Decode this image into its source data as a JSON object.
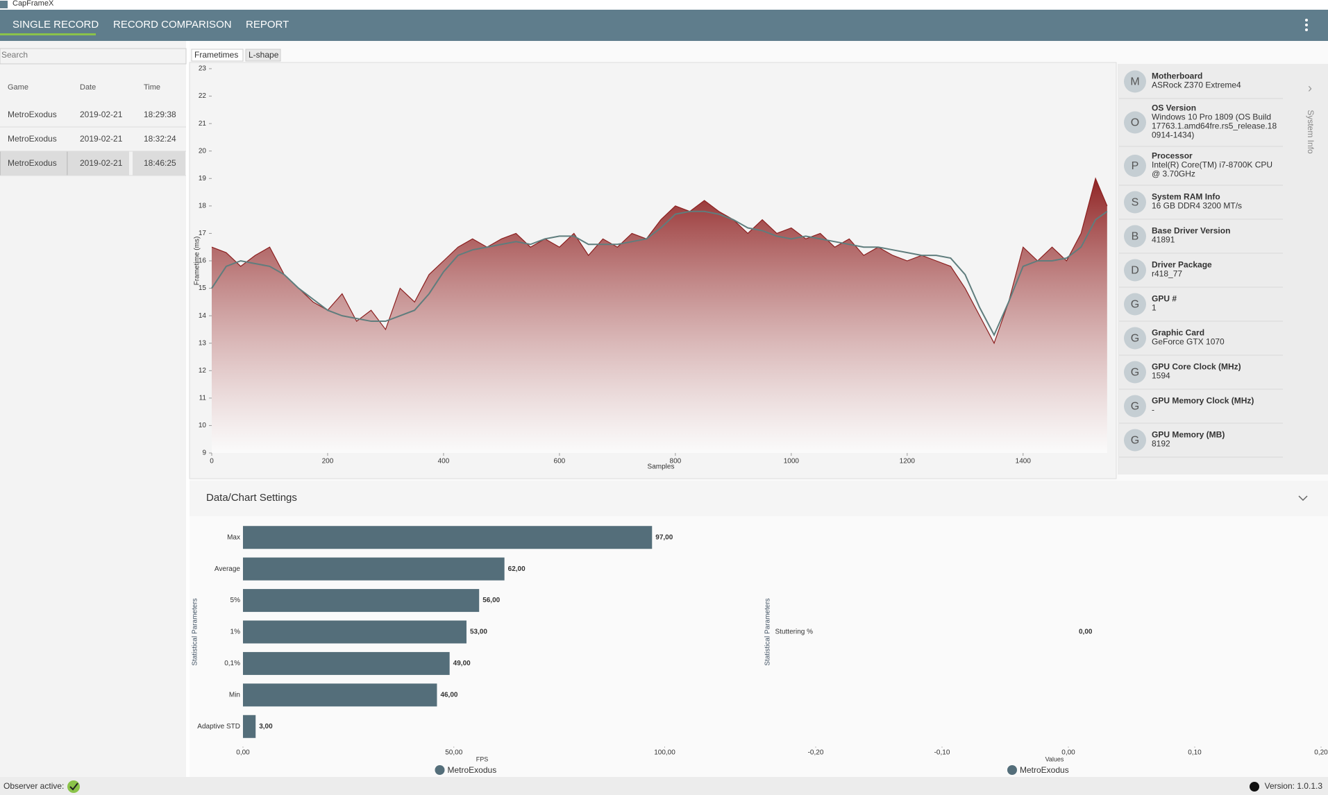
{
  "app_title": "CapFrameX",
  "nav": [
    "SINGLE RECORD",
    "RECORD COMPARISON",
    "REPORT"
  ],
  "sidebar": {
    "search": "Search",
    "headers": [
      "Game",
      "Date",
      "Time"
    ],
    "rows": [
      [
        "MetroExodus",
        "2019-02-21",
        "18:29:38"
      ],
      [
        "MetroExodus",
        "2019-02-21",
        "18:32:24"
      ],
      [
        "MetroExodus",
        "2019-02-21",
        "18:46:25"
      ]
    ]
  },
  "tabs": [
    "Frametimes",
    "L-shape"
  ],
  "system_info": {
    "title": "System Info",
    "items": [
      {
        "initial": "M",
        "label": "Motherboard",
        "value": [
          "ASRock Z370 Extreme4"
        ]
      },
      {
        "initial": "O",
        "label": "OS Version",
        "value": [
          "Windows 10 Pro 1809 (OS Build",
          "17763.1.amd64fre.rs5_release.18",
          "0914-1434)"
        ]
      },
      {
        "initial": "P",
        "label": "Processor",
        "value": [
          "Intel(R) Core(TM) i7-8700K CPU",
          "@ 3.70GHz"
        ]
      },
      {
        "initial": "S",
        "label": "System RAM Info",
        "value": [
          "16 GB DDR4 3200 MT/s"
        ]
      },
      {
        "initial": "B",
        "label": "Base Driver Version",
        "value": [
          "41891"
        ]
      },
      {
        "initial": "D",
        "label": "Driver Package",
        "value": [
          "r418_77"
        ]
      },
      {
        "initial": "G",
        "label": "GPU #",
        "value": [
          "1"
        ]
      },
      {
        "initial": "G",
        "label": "Graphic Card",
        "value": [
          "GeForce GTX 1070"
        ]
      },
      {
        "initial": "G",
        "label": "GPU Core Clock (MHz)",
        "value": [
          "1594"
        ]
      },
      {
        "initial": "G",
        "label": "GPU Memory Clock (MHz)",
        "value": [
          "-"
        ]
      },
      {
        "initial": "G",
        "label": "GPU Memory (MB)",
        "value": [
          "8192"
        ]
      }
    ]
  },
  "settings_title": "Data/Chart Settings",
  "status": {
    "observer": "Observer active:",
    "version": "Version: 1.0.1.3"
  },
  "chart_data": [
    {
      "type": "line",
      "x_label": "Samples",
      "y_label": "Frametime (ms)",
      "x": [
        0,
        25,
        50,
        75,
        100,
        125,
        150,
        175,
        200,
        225,
        250,
        275,
        300,
        325,
        350,
        375,
        400,
        425,
        450,
        475,
        500,
        525,
        550,
        575,
        600,
        625,
        650,
        675,
        700,
        725,
        750,
        775,
        800,
        825,
        850,
        875,
        900,
        925,
        950,
        975,
        1000,
        1025,
        1050,
        1075,
        1100,
        1125,
        1150,
        1175,
        1200,
        1225,
        1250,
        1275,
        1300,
        1325,
        1350,
        1375,
        1400,
        1425,
        1450,
        1475,
        1500,
        1525,
        1545
      ],
      "series": [
        {
          "color": "#8b1f1f",
          "values": [
            16.5,
            16.3,
            15.8,
            16.2,
            16.5,
            15.5,
            15,
            14.5,
            14.2,
            14.8,
            13.8,
            14.2,
            13.5,
            15,
            14.5,
            15.5,
            16,
            16.5,
            16.8,
            16.5,
            16.8,
            17,
            16.5,
            16.8,
            16.5,
            17,
            16.2,
            16.8,
            16.5,
            17,
            16.8,
            17.5,
            18,
            17.8,
            18.2,
            17.8,
            17.5,
            17,
            17.5,
            17,
            17.2,
            16.8,
            17,
            16.5,
            16.8,
            16.2,
            16.5,
            16.2,
            16,
            16.2,
            16,
            15.8,
            15,
            14,
            13,
            14.5,
            16.5,
            16,
            16.5,
            16,
            17,
            19,
            18
          ]
        },
        {
          "color": "#5f7d7d",
          "values": [
            15,
            15.8,
            16,
            15.9,
            15.8,
            15.5,
            15,
            14.6,
            14.2,
            14,
            13.9,
            13.8,
            13.8,
            14,
            14.2,
            14.8,
            15.6,
            16.2,
            16.4,
            16.5,
            16.6,
            16.7,
            16.6,
            16.8,
            16.9,
            16.9,
            16.6,
            16.6,
            16.6,
            16.7,
            16.8,
            17.2,
            17.7,
            17.8,
            17.8,
            17.7,
            17.5,
            17.2,
            17.1,
            16.9,
            16.8,
            16.9,
            16.8,
            16.7,
            16.6,
            16.5,
            16.5,
            16.4,
            16.3,
            16.2,
            16.2,
            16.1,
            15.5,
            14.3,
            13.3,
            14.5,
            15.8,
            16,
            16,
            16.1,
            16.5,
            17.5,
            17.8
          ]
        }
      ],
      "xlim": [
        0,
        1550
      ],
      "xticks": [
        0,
        200,
        400,
        600,
        800,
        1000,
        1200,
        1400
      ],
      "ylim": [
        9,
        23
      ],
      "yticks": [
        9,
        10,
        11,
        12,
        13,
        14,
        15,
        16,
        17,
        18,
        19,
        20,
        21,
        22,
        23
      ]
    },
    {
      "type": "bar",
      "orientation": "horizontal",
      "x_label": "FPS",
      "y_label": "Statistical Parameters",
      "categories": [
        "Max",
        "Average",
        "5%",
        "1%",
        "0,1%",
        "Min",
        "Adaptive STD"
      ],
      "series": [
        {
          "name": "MetroExodus",
          "color": "#546e7a",
          "values": [
            97,
            62,
            56,
            53,
            49,
            46,
            3
          ],
          "value_labels": [
            "97,00",
            "62,00",
            "56,00",
            "53,00",
            "49,00",
            "46,00",
            "3,00"
          ]
        }
      ],
      "xlim": [
        0,
        120
      ],
      "xticks": [
        {
          "value": 0,
          "label": "0,00"
        },
        {
          "value": 50,
          "label": "50,00"
        },
        {
          "value": 100,
          "label": "100,00"
        }
      ]
    },
    {
      "type": "bar",
      "orientation": "horizontal",
      "x_label": "Values",
      "y_label": "Statistical Parameters",
      "categories": [
        "Stuttering %"
      ],
      "series": [
        {
          "name": "MetroExodus",
          "color": "#546e7a",
          "values": [
            0
          ],
          "value_labels": [
            "0,00"
          ]
        }
      ],
      "xlim": [
        -0.2,
        0.2
      ],
      "xticks": [
        {
          "value": -0.2,
          "label": "-0,20"
        },
        {
          "value": -0.1,
          "label": "-0,10"
        },
        {
          "value": 0,
          "label": "0,00"
        },
        {
          "value": 0.1,
          "label": "0,10"
        },
        {
          "value": 0.2,
          "label": "0,20"
        }
      ]
    }
  ]
}
